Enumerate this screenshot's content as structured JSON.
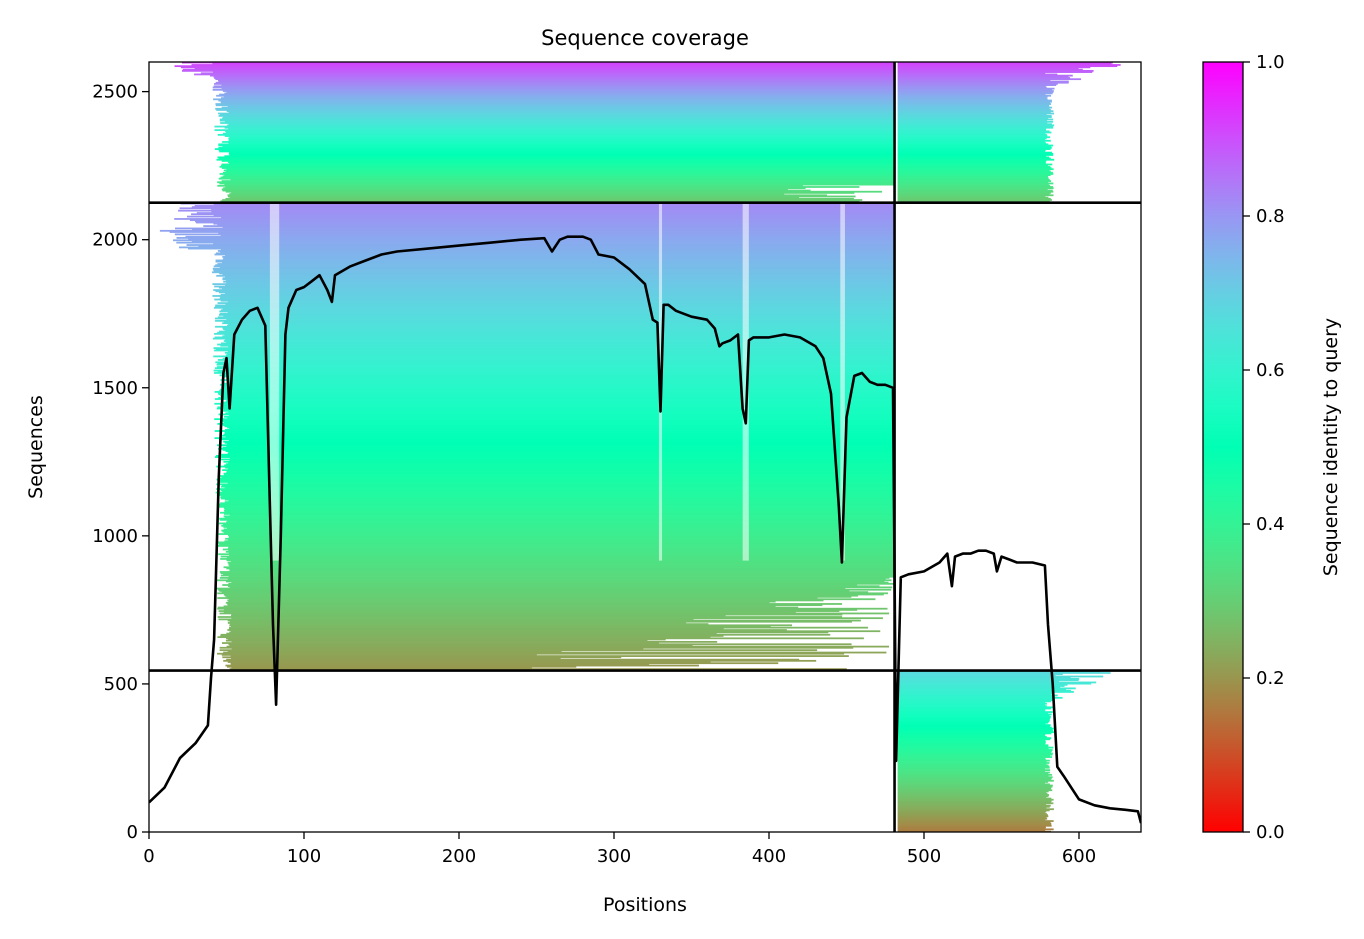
{
  "chart_data": {
    "type": "heatmap",
    "title": "Sequence coverage",
    "xlabel": "Positions",
    "ylabel": "Sequences",
    "colorbar_label": "Sequence identity to query",
    "colormap": "rainbow_r",
    "xlim": [
      0,
      640
    ],
    "ylim": [
      0,
      2600
    ],
    "x_ticks": [
      0,
      100,
      200,
      300,
      400,
      500,
      600
    ],
    "y_ticks": [
      0,
      500,
      1000,
      1500,
      2000,
      2500
    ],
    "colorbar_ticks": [
      0.0,
      0.2,
      0.4,
      0.6,
      0.8,
      1.0
    ],
    "colorbar_tick_labels": [
      "0.0",
      "0.2",
      "0.4",
      "0.6",
      "0.8",
      "1.0"
    ],
    "colorbar_range": [
      0,
      1
    ],
    "chain_boundary_positions": [
      481
    ],
    "group_boundary_sequences": [
      545,
      2125
    ],
    "groups": [
      {
        "seq_range": [
          2125,
          2600
        ],
        "chain1": true,
        "chain2": true,
        "identity_top": 0.92,
        "identity_bottom": 0.28
      },
      {
        "seq_range": [
          545,
          2125
        ],
        "chain1": true,
        "chain2": false,
        "identity_top": 0.82,
        "identity_bottom": 0.2
      },
      {
        "seq_range": [
          0,
          545
        ],
        "chain1": false,
        "chain2": true,
        "identity_top": 0.68,
        "identity_bottom": 0.16
      }
    ],
    "coverage_line_color": "#000000",
    "coverage": {
      "x": [
        0,
        10,
        20,
        30,
        38,
        40,
        42,
        45,
        48,
        50,
        52,
        55,
        60,
        65,
        70,
        75,
        78,
        80,
        82,
        85,
        88,
        90,
        95,
        100,
        105,
        110,
        115,
        118,
        120,
        130,
        140,
        150,
        160,
        180,
        200,
        220,
        240,
        255,
        260,
        265,
        270,
        280,
        285,
        290,
        300,
        310,
        320,
        325,
        328,
        330,
        332,
        335,
        340,
        350,
        360,
        365,
        368,
        370,
        375,
        380,
        383,
        385,
        387,
        390,
        395,
        400,
        410,
        420,
        430,
        435,
        440,
        445,
        447,
        450,
        455,
        460,
        465,
        470,
        475,
        480,
        482,
        485,
        490,
        500,
        510,
        515,
        518,
        520,
        525,
        530,
        535,
        540,
        545,
        547,
        550,
        555,
        560,
        570,
        578,
        580,
        583,
        586,
        590,
        600,
        610,
        620,
        630,
        638,
        640
      ],
      "y": [
        100,
        150,
        250,
        300,
        360,
        520,
        650,
        1200,
        1550,
        1600,
        1430,
        1680,
        1730,
        1760,
        1770,
        1710,
        1100,
        700,
        430,
        1000,
        1680,
        1770,
        1830,
        1840,
        1860,
        1880,
        1830,
        1790,
        1880,
        1910,
        1930,
        1950,
        1960,
        1970,
        1980,
        1990,
        2000,
        2005,
        1960,
        2000,
        2010,
        2010,
        2000,
        1950,
        1940,
        1900,
        1850,
        1730,
        1720,
        1420,
        1780,
        1780,
        1760,
        1740,
        1730,
        1700,
        1640,
        1650,
        1660,
        1680,
        1430,
        1380,
        1660,
        1670,
        1670,
        1670,
        1680,
        1670,
        1640,
        1600,
        1480,
        1100,
        910,
        1400,
        1540,
        1550,
        1520,
        1510,
        1510,
        1500,
        240,
        860,
        870,
        880,
        910,
        940,
        830,
        930,
        940,
        940,
        950,
        950,
        940,
        880,
        930,
        920,
        910,
        910,
        900,
        700,
        500,
        220,
        190,
        110,
        90,
        80,
        75,
        70,
        30
      ]
    }
  }
}
